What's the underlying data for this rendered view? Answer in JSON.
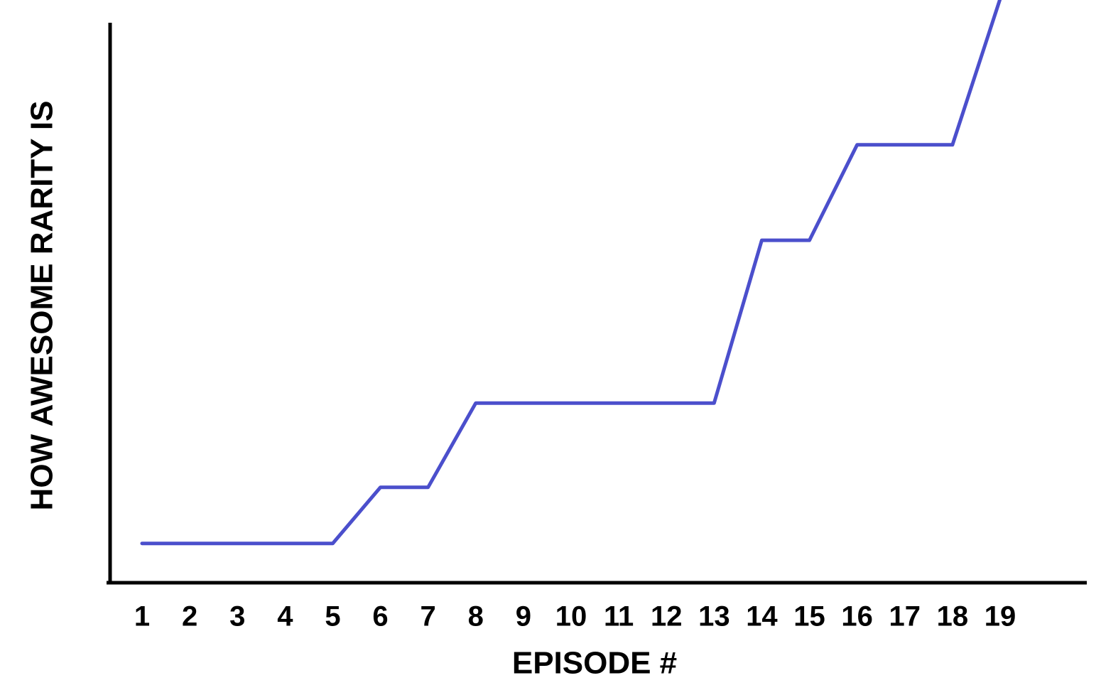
{
  "chart_data": {
    "type": "line",
    "x_label": "EPISODE #",
    "y_label": "HOW AWESOME RARITY IS",
    "categories": [
      "1",
      "2",
      "3",
      "4",
      "5",
      "6",
      "7",
      "8",
      "9",
      "10",
      "11",
      "12",
      "13",
      "14",
      "15",
      "16",
      "17",
      "18",
      "19"
    ],
    "values": [
      7,
      7,
      7,
      7,
      7,
      17,
      17,
      32,
      32,
      32,
      32,
      32,
      32,
      61,
      61,
      78,
      78,
      78,
      104
    ],
    "color": "#4b4fcc",
    "ylim": [
      0,
      100
    ]
  }
}
